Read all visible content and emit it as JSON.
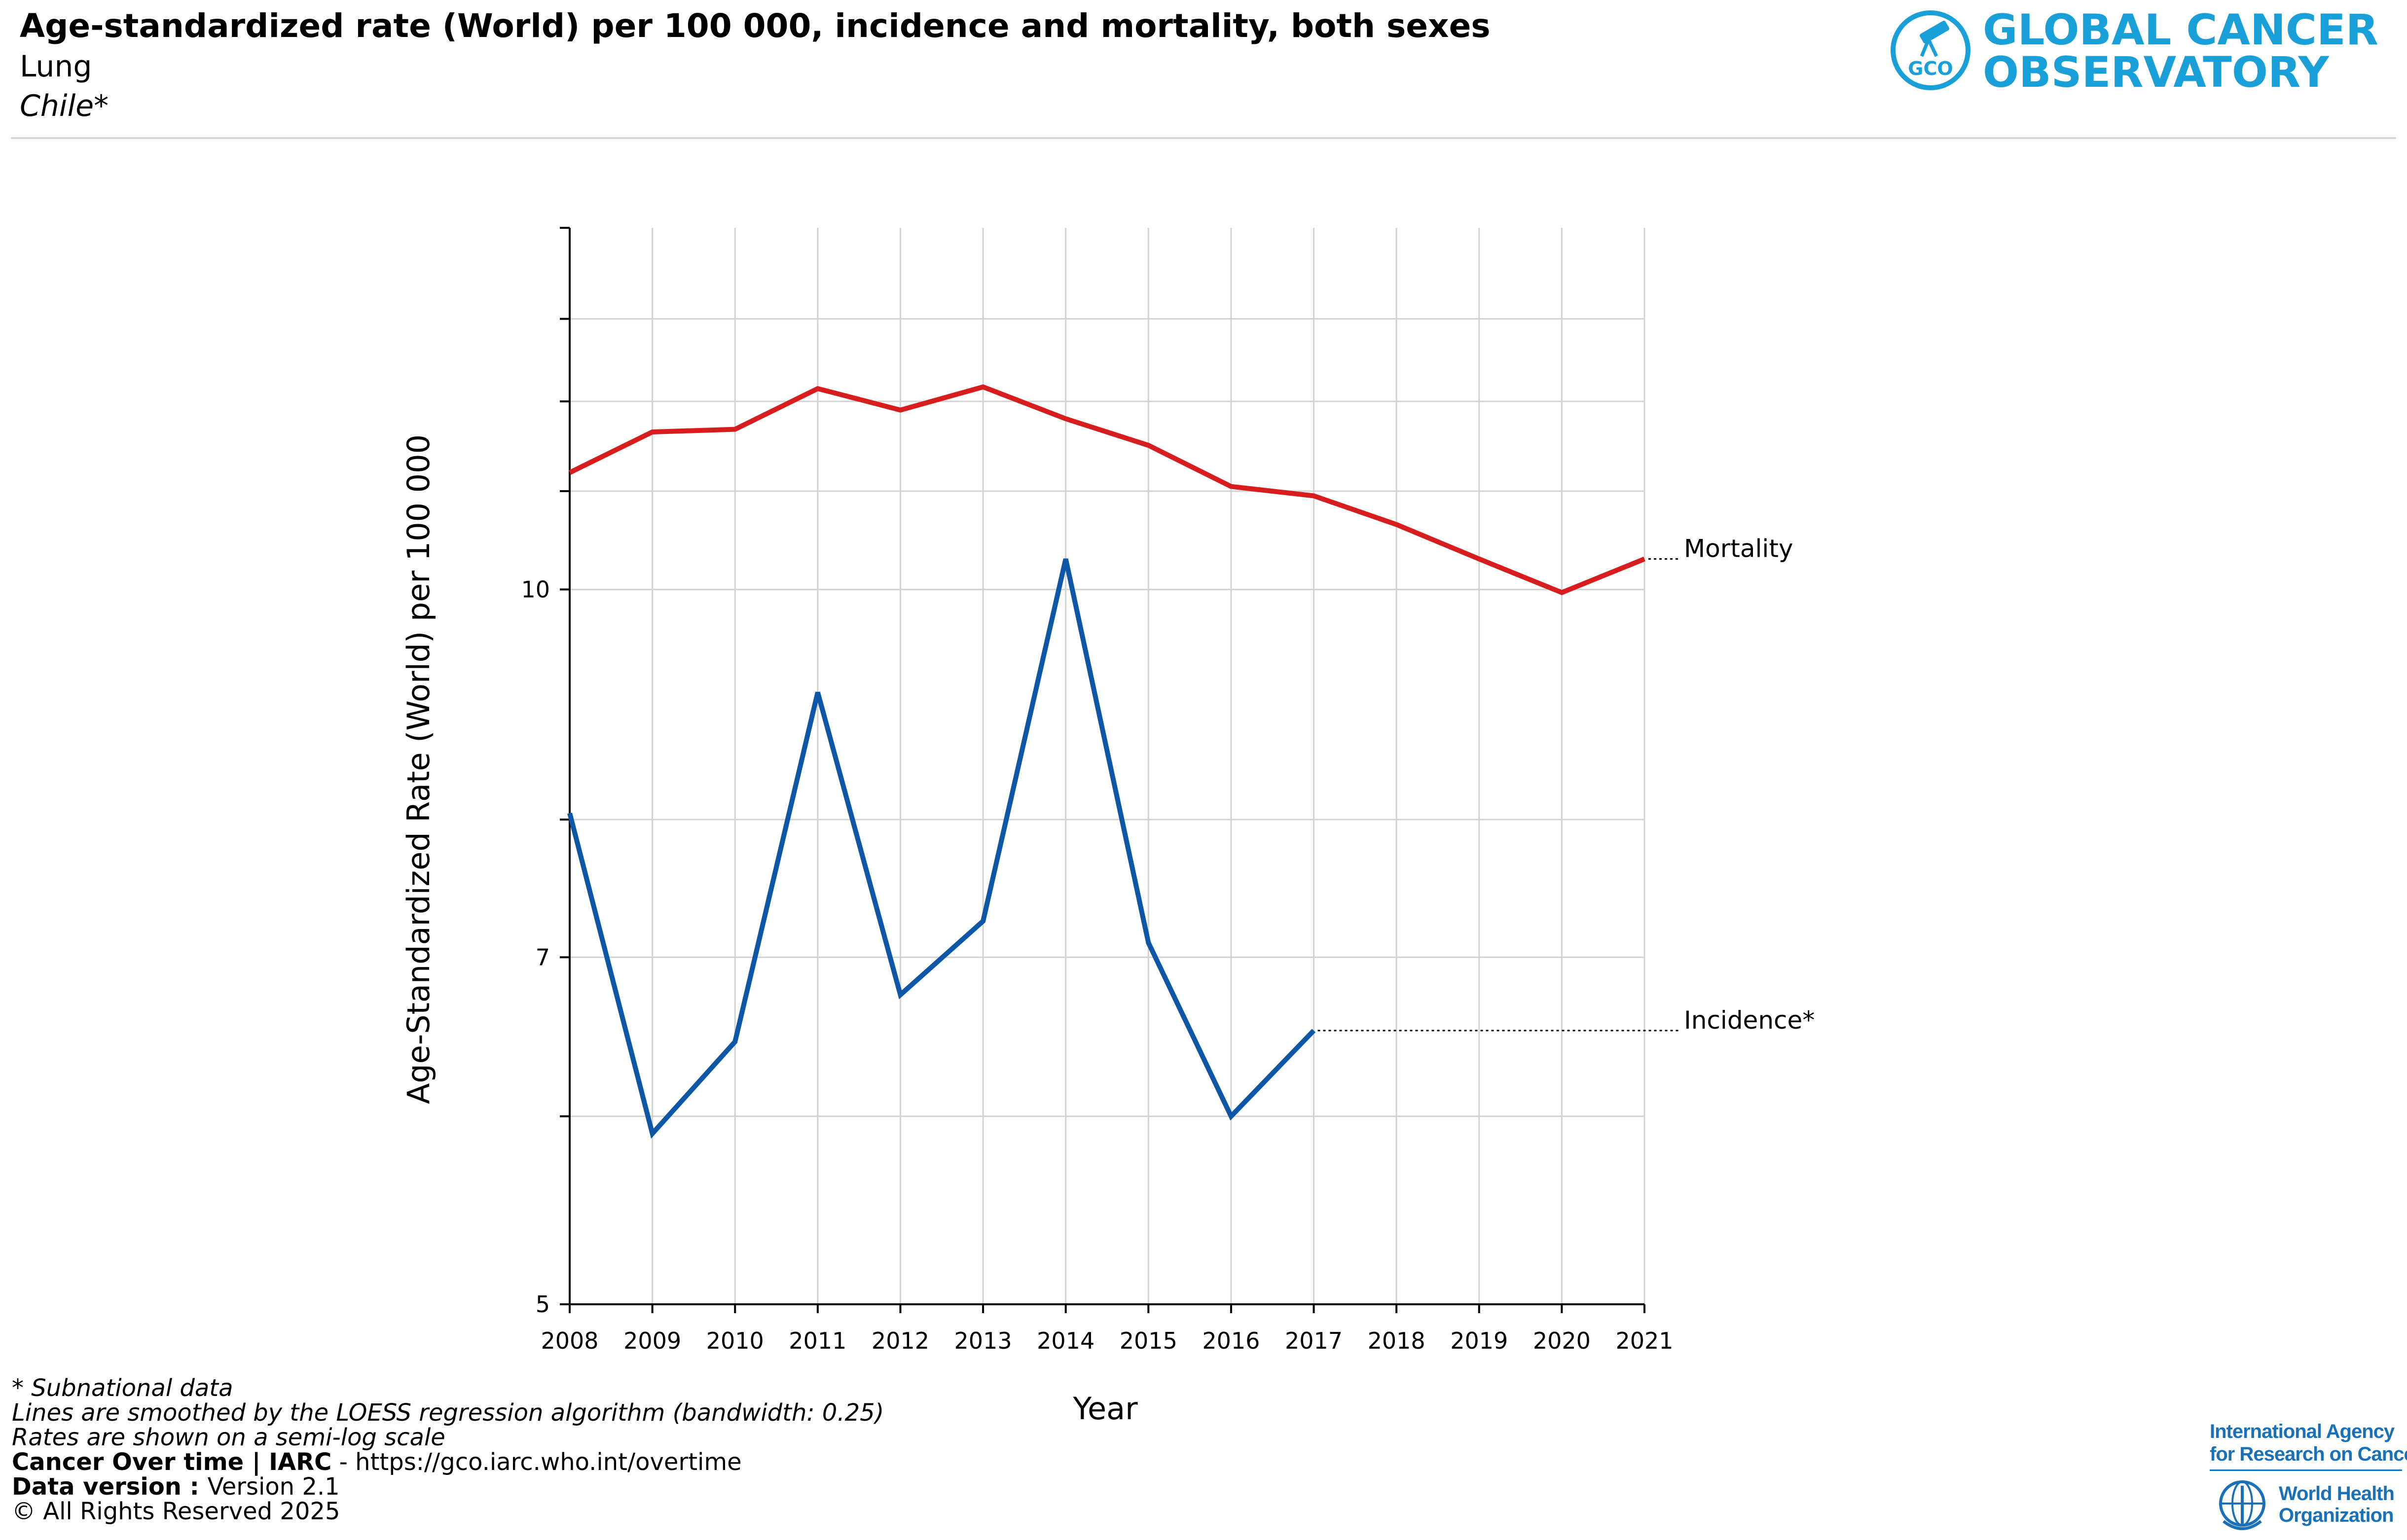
{
  "header": {
    "title": "Age-standardized rate (World) per 100 000, incidence and mortality, both sexes",
    "cancer_site": "Lung",
    "region": "Chile*"
  },
  "logo": {
    "line1": "GLOBAL CANCER",
    "line2": "OBSERVATORY",
    "emblem_text": "GCO",
    "color": "#1aa0d8"
  },
  "footnotes": {
    "subnational": "* Subnational data",
    "smoothing": "Lines are smoothed by the LOESS regression algorithm (bandwidth: 0.25)",
    "scale": "Rates are shown on a semi-log scale",
    "source_bold": "Cancer Over time | IARC",
    "source_rest": " - https://gco.iarc.who.int/overtime",
    "version_bold": "Data version : ",
    "version_rest": "Version 2.1",
    "copyright": "© All Rights Reserved 2025"
  },
  "iarc": {
    "line1": "International Agency",
    "line2": "for Research on Cancer",
    "who_line1": "World Health",
    "who_line2": "Organization",
    "color": "#1a71b8"
  },
  "chart_data": {
    "type": "line",
    "xlabel": "Year",
    "ylabel": "Age-Standardized Rate (World) per 100 000",
    "yscale": "log",
    "ylim": [
      5,
      14.2
    ],
    "yticks": [
      5,
      7,
      10
    ],
    "yminor": [
      6,
      8,
      11,
      12,
      13
    ],
    "grid": true,
    "x": [
      2008,
      2009,
      2010,
      2011,
      2012,
      2013,
      2014,
      2015,
      2016,
      2017,
      2018,
      2019,
      2020,
      2021
    ],
    "series": [
      {
        "name": "Mortality",
        "color": "#d71d1d",
        "values": [
          11.2,
          11.65,
          11.68,
          12.15,
          11.9,
          12.17,
          11.8,
          11.5,
          11.05,
          10.95,
          10.65,
          10.3,
          9.97,
          10.3
        ]
      },
      {
        "name": "Incidence*",
        "color": "#0d57a6",
        "values": [
          8.05,
          5.9,
          6.45,
          9.05,
          6.75,
          7.25,
          10.3,
          7.1,
          6.0,
          6.52,
          null,
          null,
          null,
          null
        ]
      }
    ]
  }
}
